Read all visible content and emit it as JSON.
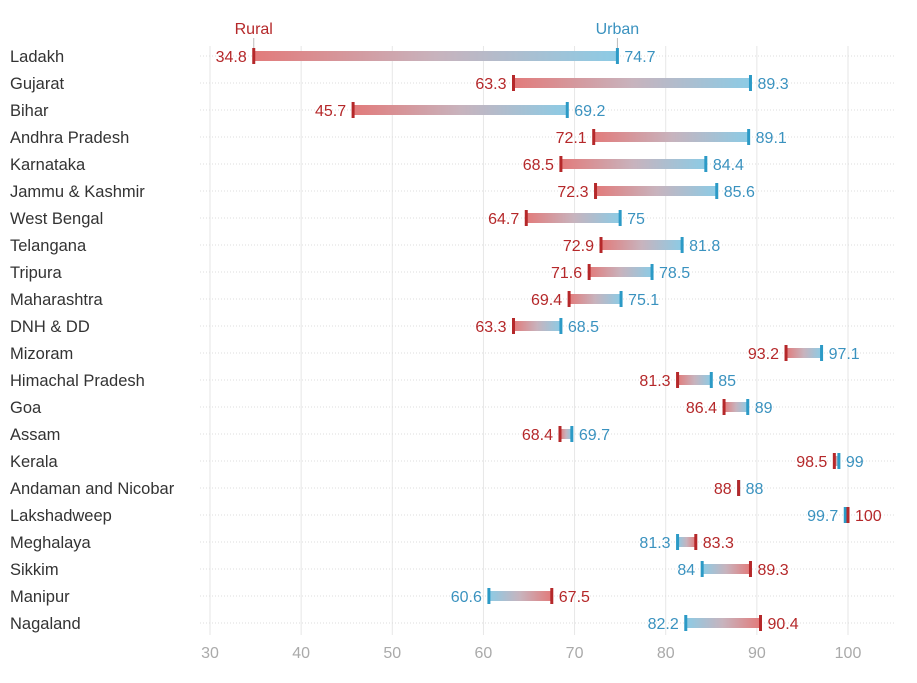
{
  "chart_data": {
    "type": "dumbbell",
    "title": "",
    "xlabel": "",
    "ylabel": "",
    "xlim": [
      30,
      105
    ],
    "xticks": [
      30,
      40,
      50,
      60,
      70,
      80,
      90,
      100
    ],
    "grid": true,
    "legend": {
      "placement": "top",
      "entries": [
        {
          "name": "Rural",
          "color": "#b5282a"
        },
        {
          "name": "Urban",
          "color": "#3a92bf"
        }
      ]
    },
    "colors": {
      "rural": "#b5282a",
      "urban": "#2c9ac6",
      "rural_bar": "#e07a7a",
      "urban_bar": "#8fcbe4"
    },
    "categories": [
      "Ladakh",
      "Gujarat",
      "Bihar",
      "Andhra Pradesh",
      "Karnataka",
      "Jammu & Kashmir",
      "West Bengal",
      "Telangana",
      "Tripura",
      "Maharashtra",
      "DNH & DD",
      "Mizoram",
      "Himachal Pradesh",
      "Goa",
      "Assam",
      "Kerala",
      "Andaman and Nicobar",
      "Lakshadweep",
      "Meghalaya",
      "Sikkim",
      "Manipur",
      "Nagaland"
    ],
    "series": [
      {
        "name": "Rural",
        "values": [
          34.8,
          63.3,
          45.7,
          72.1,
          68.5,
          72.3,
          64.7,
          72.9,
          71.6,
          69.4,
          63.3,
          93.2,
          81.3,
          86.4,
          68.4,
          98.5,
          88,
          100,
          83.3,
          89.3,
          67.5,
          90.4
        ]
      },
      {
        "name": "Urban",
        "values": [
          74.7,
          89.3,
          69.2,
          89.1,
          84.4,
          85.6,
          75,
          81.8,
          78.5,
          75.1,
          68.5,
          97.1,
          85,
          89,
          69.7,
          99,
          88,
          99.7,
          81.3,
          84,
          60.6,
          82.2
        ]
      }
    ]
  }
}
